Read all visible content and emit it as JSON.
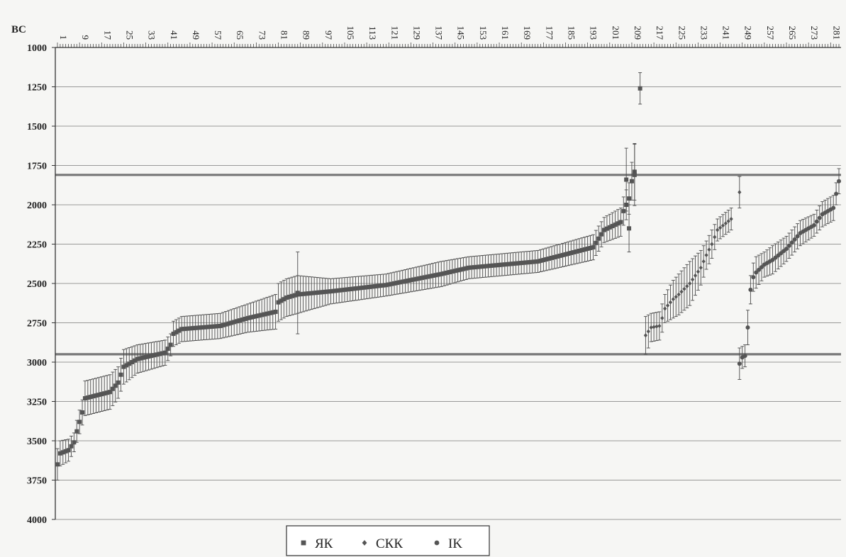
{
  "chart_data": {
    "type": "scatter",
    "title": "",
    "ylabel": "BC",
    "xlabel": "",
    "y_reversed": true,
    "ylim": [
      1000,
      4000
    ],
    "xlim": [
      1,
      284
    ],
    "y_ticks": [
      1000,
      1250,
      1500,
      1750,
      2000,
      2250,
      2500,
      2750,
      3000,
      3250,
      3500,
      3750,
      4000
    ],
    "x_tick_labels": [
      1,
      9,
      17,
      25,
      33,
      41,
      49,
      57,
      65,
      73,
      81,
      89,
      97,
      105,
      113,
      121,
      129,
      137,
      145,
      153,
      161,
      169,
      177,
      185,
      193,
      201,
      209,
      217,
      225,
      233,
      241,
      249,
      257,
      265,
      273,
      281
    ],
    "grid": true,
    "legend_position": "bottom-center",
    "reference_lines": [
      1810,
      2950
    ],
    "colors": {
      "series": "#555555",
      "grid": "#7a7a7a",
      "reference": "#777777"
    },
    "series": [
      {
        "name": "ЯК",
        "marker": "square",
        "x_start": 1,
        "x_end": 210,
        "anchors": [
          [
            1,
            3650,
            100
          ],
          [
            2,
            3580,
            80
          ],
          [
            5,
            3560,
            70
          ],
          [
            7,
            3510,
            60
          ],
          [
            8,
            3440,
            70
          ],
          [
            10,
            3320,
            80
          ],
          [
            11,
            3230,
            110
          ],
          [
            20,
            3190,
            110
          ],
          [
            23,
            3130,
            100
          ],
          [
            25,
            3030,
            110
          ],
          [
            30,
            2980,
            90
          ],
          [
            40,
            2940,
            80
          ],
          [
            42,
            2890,
            70
          ],
          [
            43,
            2820,
            80
          ],
          [
            46,
            2790,
            80
          ],
          [
            60,
            2770,
            80
          ],
          [
            70,
            2720,
            90
          ],
          [
            80,
            2680,
            110
          ],
          [
            81,
            2620,
            120
          ],
          [
            84,
            2590,
            120
          ],
          [
            88,
            2570,
            120
          ],
          [
            100,
            2550,
            80
          ],
          [
            120,
            2510,
            70
          ],
          [
            140,
            2440,
            80
          ],
          [
            150,
            2400,
            70
          ],
          [
            175,
            2360,
            70
          ],
          [
            195,
            2270,
            80
          ],
          [
            199,
            2160,
            80
          ],
          [
            205,
            2110,
            90
          ],
          [
            206,
            2040,
            90
          ],
          [
            208,
            1960,
            100
          ],
          [
            209,
            1850,
            120
          ],
          [
            210,
            1790,
            180
          ]
        ],
        "extra_points": [
          {
            "x": 88,
            "y": 2560,
            "err": 260
          },
          {
            "x": 207,
            "y": 1840,
            "err": 200
          },
          {
            "x": 208,
            "y": 2150,
            "err": 150
          },
          {
            "x": 210,
            "y": 1810,
            "err": 195
          },
          {
            "x": 212,
            "y": 1260,
            "err": 100
          }
        ]
      },
      {
        "name": "СКК",
        "marker": "diamond",
        "x_start": 214,
        "x_end": 245,
        "anchors": [
          [
            214,
            2830,
            120
          ],
          [
            216,
            2780,
            90
          ],
          [
            219,
            2770,
            90
          ],
          [
            220,
            2720,
            90
          ],
          [
            221,
            2660,
            90
          ],
          [
            224,
            2600,
            120
          ],
          [
            226,
            2570,
            130
          ],
          [
            230,
            2500,
            140
          ],
          [
            234,
            2400,
            110
          ],
          [
            236,
            2320,
            90
          ],
          [
            238,
            2250,
            90
          ],
          [
            240,
            2160,
            70
          ],
          [
            245,
            2090,
            70
          ]
        ],
        "extra_points": [
          {
            "x": 248,
            "y": 1920,
            "err": 100
          }
        ]
      },
      {
        "name": "IK",
        "marker": "circle",
        "x_start": 248,
        "x_end": 284,
        "anchors": [
          [
            248,
            3010,
            100
          ],
          [
            249,
            2970,
            70
          ],
          [
            250,
            2960,
            70
          ],
          [
            251,
            2780,
            110
          ],
          [
            252,
            2540,
            90
          ],
          [
            253,
            2460,
            90
          ],
          [
            254,
            2430,
            100
          ],
          [
            257,
            2380,
            80
          ],
          [
            260,
            2350,
            90
          ],
          [
            265,
            2280,
            80
          ],
          [
            270,
            2180,
            80
          ],
          [
            275,
            2130,
            70
          ],
          [
            278,
            2060,
            80
          ],
          [
            282,
            2020,
            80
          ],
          [
            283,
            1930,
            70
          ],
          [
            284,
            1850,
            80
          ]
        ],
        "extra_points": []
      }
    ]
  }
}
